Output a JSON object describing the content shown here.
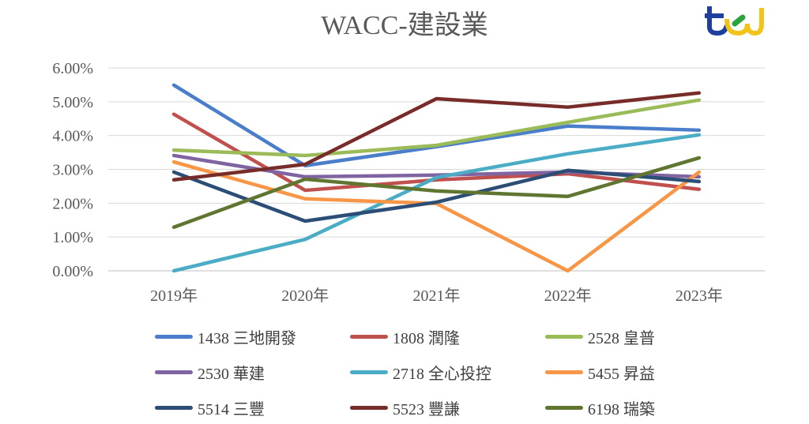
{
  "chart_data": {
    "type": "line",
    "title": "WACC-建設業",
    "categories": [
      "2019年",
      "2020年",
      "2021年",
      "2022年",
      "2023年"
    ],
    "ylim": [
      0,
      6
    ],
    "yticks": [
      "0.00%",
      "1.00%",
      "2.00%",
      "3.00%",
      "4.00%",
      "5.00%",
      "6.00%"
    ],
    "grid": true,
    "legend_position": "bottom",
    "series": [
      {
        "name": "1438 三地開發",
        "color": "#4a7ecb",
        "values": [
          5.49,
          3.11,
          3.67,
          4.28,
          4.16
        ]
      },
      {
        "name": "1808 潤隆",
        "color": "#c0504d",
        "values": [
          4.63,
          2.38,
          2.69,
          2.87,
          2.41
        ]
      },
      {
        "name": "2528 皇普",
        "color": "#9bbb59",
        "values": [
          3.57,
          3.41,
          3.71,
          4.39,
          5.05
        ]
      },
      {
        "name": "2530 華建",
        "color": "#8064a2",
        "values": [
          3.41,
          2.78,
          2.83,
          2.92,
          2.78
        ]
      },
      {
        "name": "2718 全心投控",
        "color": "#4bacc6",
        "values": [
          0.0,
          0.93,
          2.76,
          3.46,
          4.02
        ]
      },
      {
        "name": "5455 昇益",
        "color": "#f79646",
        "values": [
          3.22,
          2.13,
          1.99,
          0.0,
          2.92
        ]
      },
      {
        "name": "5514 三豐",
        "color": "#2c4d75",
        "values": [
          2.92,
          1.47,
          2.03,
          2.97,
          2.64
        ]
      },
      {
        "name": "5523 豐謙",
        "color": "#772c2a",
        "values": [
          2.69,
          3.15,
          5.09,
          4.84,
          5.26
        ]
      },
      {
        "name": "6198 瑞築",
        "color": "#5f7530",
        "values": [
          1.29,
          2.71,
          2.36,
          2.2,
          3.34
        ]
      }
    ]
  }
}
